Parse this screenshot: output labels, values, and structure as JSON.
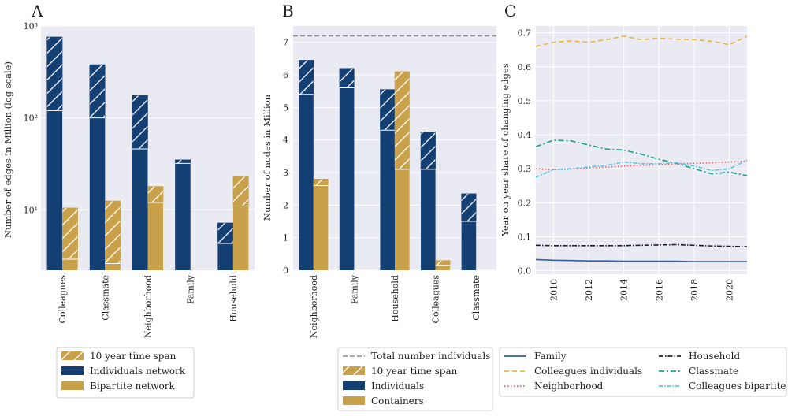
{
  "colors": {
    "navy": "#143f73",
    "gold": "#c9a14a",
    "panel_bg": "#eaeaf2",
    "grid": "#ffffff",
    "total_line": "#888888",
    "family": "#2e5fb0",
    "colleagues_individuals": "#e8b540",
    "neighborhood": "#d46a6a",
    "household": "#222222",
    "classmate": "#1f9c8a",
    "colleagues_bipartite": "#5fc4e6"
  },
  "chart_data": [
    {
      "id": "A",
      "type": "bar",
      "panel_letter": "A",
      "title": "",
      "xlabel": "",
      "ylabel": "Number of edges in Million (log scale)",
      "yscale": "log",
      "ylim": [
        2.2,
        1000
      ],
      "yticks": [
        10,
        100,
        1000
      ],
      "ytick_labels": [
        "10¹",
        "10²",
        "10³"
      ],
      "categories": [
        "Colleagues",
        "Classmate",
        "Neighborhood",
        "Family",
        "Household"
      ],
      "series": [
        {
          "name": "Individuals network",
          "color_key": "navy",
          "base": [
            120,
            100,
            46,
            32,
            4.3
          ],
          "span": [
            760,
            380,
            175,
            35,
            7.2
          ]
        },
        {
          "name": "Bipartite network",
          "color_key": "gold",
          "base": [
            2.9,
            2.6,
            12,
            null,
            11
          ],
          "span": [
            10.5,
            12.5,
            18,
            null,
            23
          ]
        }
      ],
      "legend": [
        {
          "label": "10 year time span",
          "kind": "hatch"
        },
        {
          "label": "Individuals network",
          "kind": "navy"
        },
        {
          "label": "Bipartite network",
          "kind": "gold"
        }
      ]
    },
    {
      "id": "B",
      "type": "bar",
      "panel_letter": "B",
      "title": "",
      "xlabel": "",
      "ylabel": "Number of nodes in Million",
      "ylim": [
        0,
        7.5
      ],
      "yticks": [
        0,
        1,
        2,
        3,
        4,
        5,
        6,
        7
      ],
      "ytick_labels": [
        "0",
        "1",
        "2",
        "3",
        "4",
        "5",
        "6",
        "7"
      ],
      "categories": [
        "Neighborhood",
        "Family",
        "Household",
        "Colleagues",
        "Classmate"
      ],
      "total_individuals": 7.2,
      "series": [
        {
          "name": "Individuals",
          "color_key": "navy",
          "base": [
            5.4,
            5.6,
            4.3,
            3.1,
            1.5
          ],
          "span": [
            6.45,
            6.2,
            5.55,
            4.25,
            2.35
          ]
        },
        {
          "name": "Containers",
          "color_key": "gold",
          "base": [
            2.6,
            null,
            3.1,
            0.15,
            null
          ],
          "span": [
            2.8,
            null,
            6.1,
            0.3,
            null
          ]
        }
      ],
      "legend": [
        {
          "label": "Total number individuals",
          "kind": "dashed"
        },
        {
          "label": "10 year time span",
          "kind": "hatch"
        },
        {
          "label": "Individuals",
          "kind": "navy"
        },
        {
          "label": "Containers",
          "kind": "gold"
        }
      ]
    },
    {
      "id": "C",
      "type": "line",
      "panel_letter": "C",
      "title": "",
      "xlabel": "",
      "ylabel": "Year on year share of changing edges",
      "xlim": [
        2009,
        2021
      ],
      "ylim": [
        -0.01,
        0.72
      ],
      "xticks": [
        2010,
        2012,
        2014,
        2016,
        2018,
        2020
      ],
      "yticks": [
        0.0,
        0.1,
        0.2,
        0.3,
        0.4,
        0.5,
        0.6,
        0.7
      ],
      "ytick_labels": [
        "0.0",
        "0.1",
        "0.2",
        "0.3",
        "0.4",
        "0.5",
        "0.6",
        "0.7"
      ],
      "x": [
        2009,
        2010,
        2011,
        2012,
        2013,
        2014,
        2015,
        2016,
        2017,
        2018,
        2019,
        2020,
        2021
      ],
      "series": [
        {
          "name": "Family",
          "color_key": "family",
          "dash": "",
          "values": [
            0.033,
            0.031,
            0.03,
            0.029,
            0.029,
            0.028,
            0.028,
            0.028,
            0.028,
            0.027,
            0.027,
            0.027,
            0.027
          ]
        },
        {
          "name": "Colleagues individuals",
          "color_key": "colleagues_individuals",
          "dash": "6,4",
          "values": [
            0.66,
            0.672,
            0.676,
            0.672,
            0.68,
            0.69,
            0.68,
            0.684,
            0.681,
            0.68,
            0.675,
            0.665,
            0.69
          ]
        },
        {
          "name": "Neighborhood",
          "color_key": "neighborhood",
          "dash": "1.5,2.5",
          "values": [
            0.3,
            0.298,
            0.299,
            0.302,
            0.305,
            0.308,
            0.31,
            0.312,
            0.314,
            0.316,
            0.318,
            0.32,
            0.322
          ]
        },
        {
          "name": "Household",
          "color_key": "household",
          "dash": "6,2,1.5,2",
          "values": [
            0.075,
            0.074,
            0.074,
            0.074,
            0.074,
            0.074,
            0.075,
            0.076,
            0.077,
            0.075,
            0.073,
            0.072,
            0.071
          ]
        },
        {
          "name": "Classmate",
          "color_key": "classmate",
          "dash": "7,3,2,3",
          "values": [
            0.365,
            0.384,
            0.382,
            0.37,
            0.358,
            0.355,
            0.343,
            0.328,
            0.316,
            0.3,
            0.285,
            0.29,
            0.28
          ]
        },
        {
          "name": "Colleagues bipartite",
          "color_key": "colleagues_bipartite",
          "dash": "5,2,1.5,2",
          "values": [
            0.275,
            0.298,
            0.3,
            0.305,
            0.31,
            0.32,
            0.315,
            0.315,
            0.318,
            0.308,
            0.295,
            0.3,
            0.325
          ]
        }
      ],
      "legend_rows": [
        [
          "Family",
          "Household"
        ],
        [
          "Colleagues individuals",
          "Classmate"
        ],
        [
          "Neighborhood",
          "Colleagues bipartite"
        ]
      ]
    }
  ]
}
